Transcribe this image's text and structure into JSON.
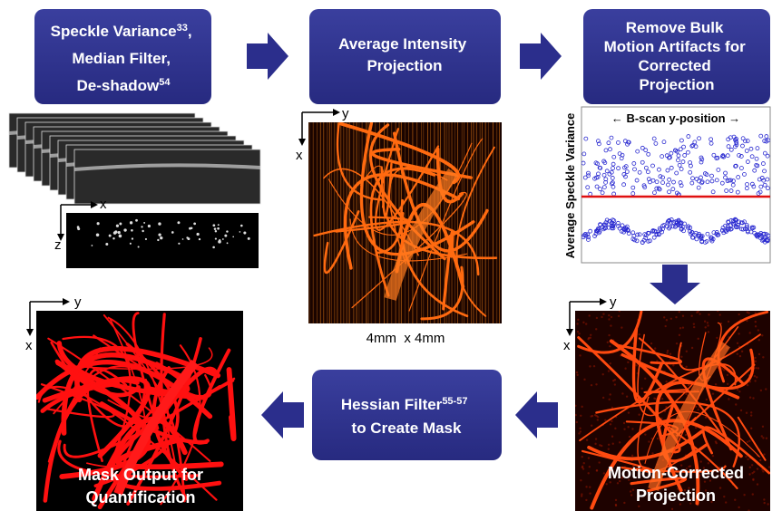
{
  "boxes": {
    "speckle": {
      "line1": "Speckle Variance",
      "line1_sup": "33",
      "line1_end": ",",
      "line2": "Median Filter,",
      "line3": "De-shadow",
      "line3_sup": "54"
    },
    "average": {
      "line1": "Average Intensity",
      "line2": "Projection"
    },
    "remove": {
      "line1": "Remove Bulk",
      "line2": "Motion Artifacts for",
      "line3": "Corrected",
      "line4": "Projection"
    },
    "hessian": {
      "line1": "Hessian Filter",
      "line1_sup": "55-57",
      "line2": "to Create Mask"
    }
  },
  "bscan": {
    "x_label": "x",
    "z_label": "z"
  },
  "projection": {
    "y_label": "y",
    "x_label": "x",
    "caption": "4mm  x 4mm"
  },
  "plot": {
    "y_label": "Average Speckle Variance",
    "x_label": "← B-scan y-position →"
  },
  "corrected": {
    "y_label": "y",
    "x_label": "x",
    "caption1": "Motion-Corrected",
    "caption2": "Projection"
  },
  "mask": {
    "y_label": "y",
    "x_label": "x",
    "caption1": "Mask Output for",
    "caption2": "Quantification"
  }
}
